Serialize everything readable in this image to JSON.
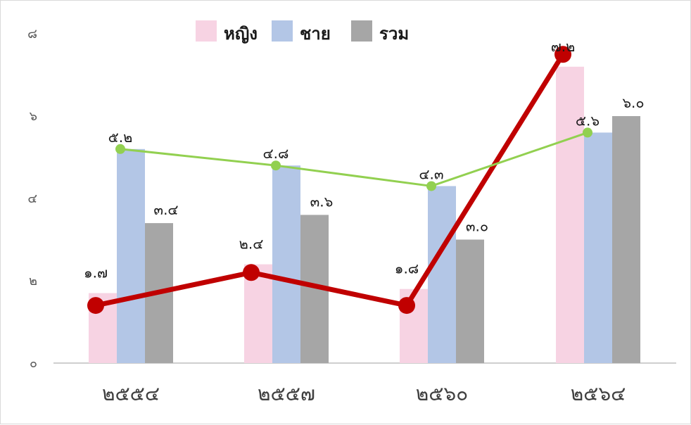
{
  "chart_data": {
    "type": "bar",
    "categories": [
      "๒๕๕๔",
      "๒๕๕๗",
      "๒๕๖๐",
      "๒๕๖๔"
    ],
    "series": [
      {
        "name": "หญิง",
        "kind": "bar",
        "color": "#f7d3e3",
        "values": [
          1.7,
          2.4,
          1.8,
          7.2
        ]
      },
      {
        "name": "ชาย",
        "kind": "bar",
        "color": "#b3c6e6",
        "values": [
          5.2,
          4.8,
          4.3,
          5.6
        ]
      },
      {
        "name": "รวม",
        "kind": "bar",
        "color": "#a6a6a6",
        "values": [
          3.4,
          3.6,
          3.0,
          6.0
        ]
      }
    ],
    "overlay_lines": [
      {
        "kind": "line",
        "color": "#c00000",
        "values": [
          1.4,
          2.2,
          1.4,
          7.5
        ]
      },
      {
        "kind": "line",
        "color": "#92d050",
        "values": [
          5.2,
          4.8,
          4.3,
          5.6
        ]
      }
    ],
    "data_labels": [
      {
        "series": 0,
        "category": 0,
        "text": "๑.๗"
      },
      {
        "series": 0,
        "category": 1,
        "text": "๒.๔"
      },
      {
        "series": 0,
        "category": 2,
        "text": "๑.๘"
      },
      {
        "series": 0,
        "category": 3,
        "text": "๗.๒"
      },
      {
        "series": 1,
        "category": 0,
        "text": "๕.๒"
      },
      {
        "series": 1,
        "category": 1,
        "text": "๔.๘"
      },
      {
        "series": 1,
        "category": 2,
        "text": "๔.๓"
      },
      {
        "series": 1,
        "category": 3,
        "text": "๕.๖"
      },
      {
        "series": 2,
        "category": 0,
        "text": "๓.๔"
      },
      {
        "series": 2,
        "category": 1,
        "text": "๓.๖"
      },
      {
        "series": 2,
        "category": 2,
        "text": "๓.๐"
      },
      {
        "series": 2,
        "category": 3,
        "text": "๖.๐"
      }
    ],
    "yticks": [
      {
        "value": 0,
        "label": "๐"
      },
      {
        "value": 2,
        "label": "๒"
      },
      {
        "value": 4,
        "label": "๔"
      },
      {
        "value": 6,
        "label": "๖"
      },
      {
        "value": 8,
        "label": "๘"
      }
    ],
    "ylim": [
      0,
      8
    ],
    "grid": false,
    "legend_position": "top",
    "title": "",
    "xlabel": "",
    "ylabel": ""
  }
}
